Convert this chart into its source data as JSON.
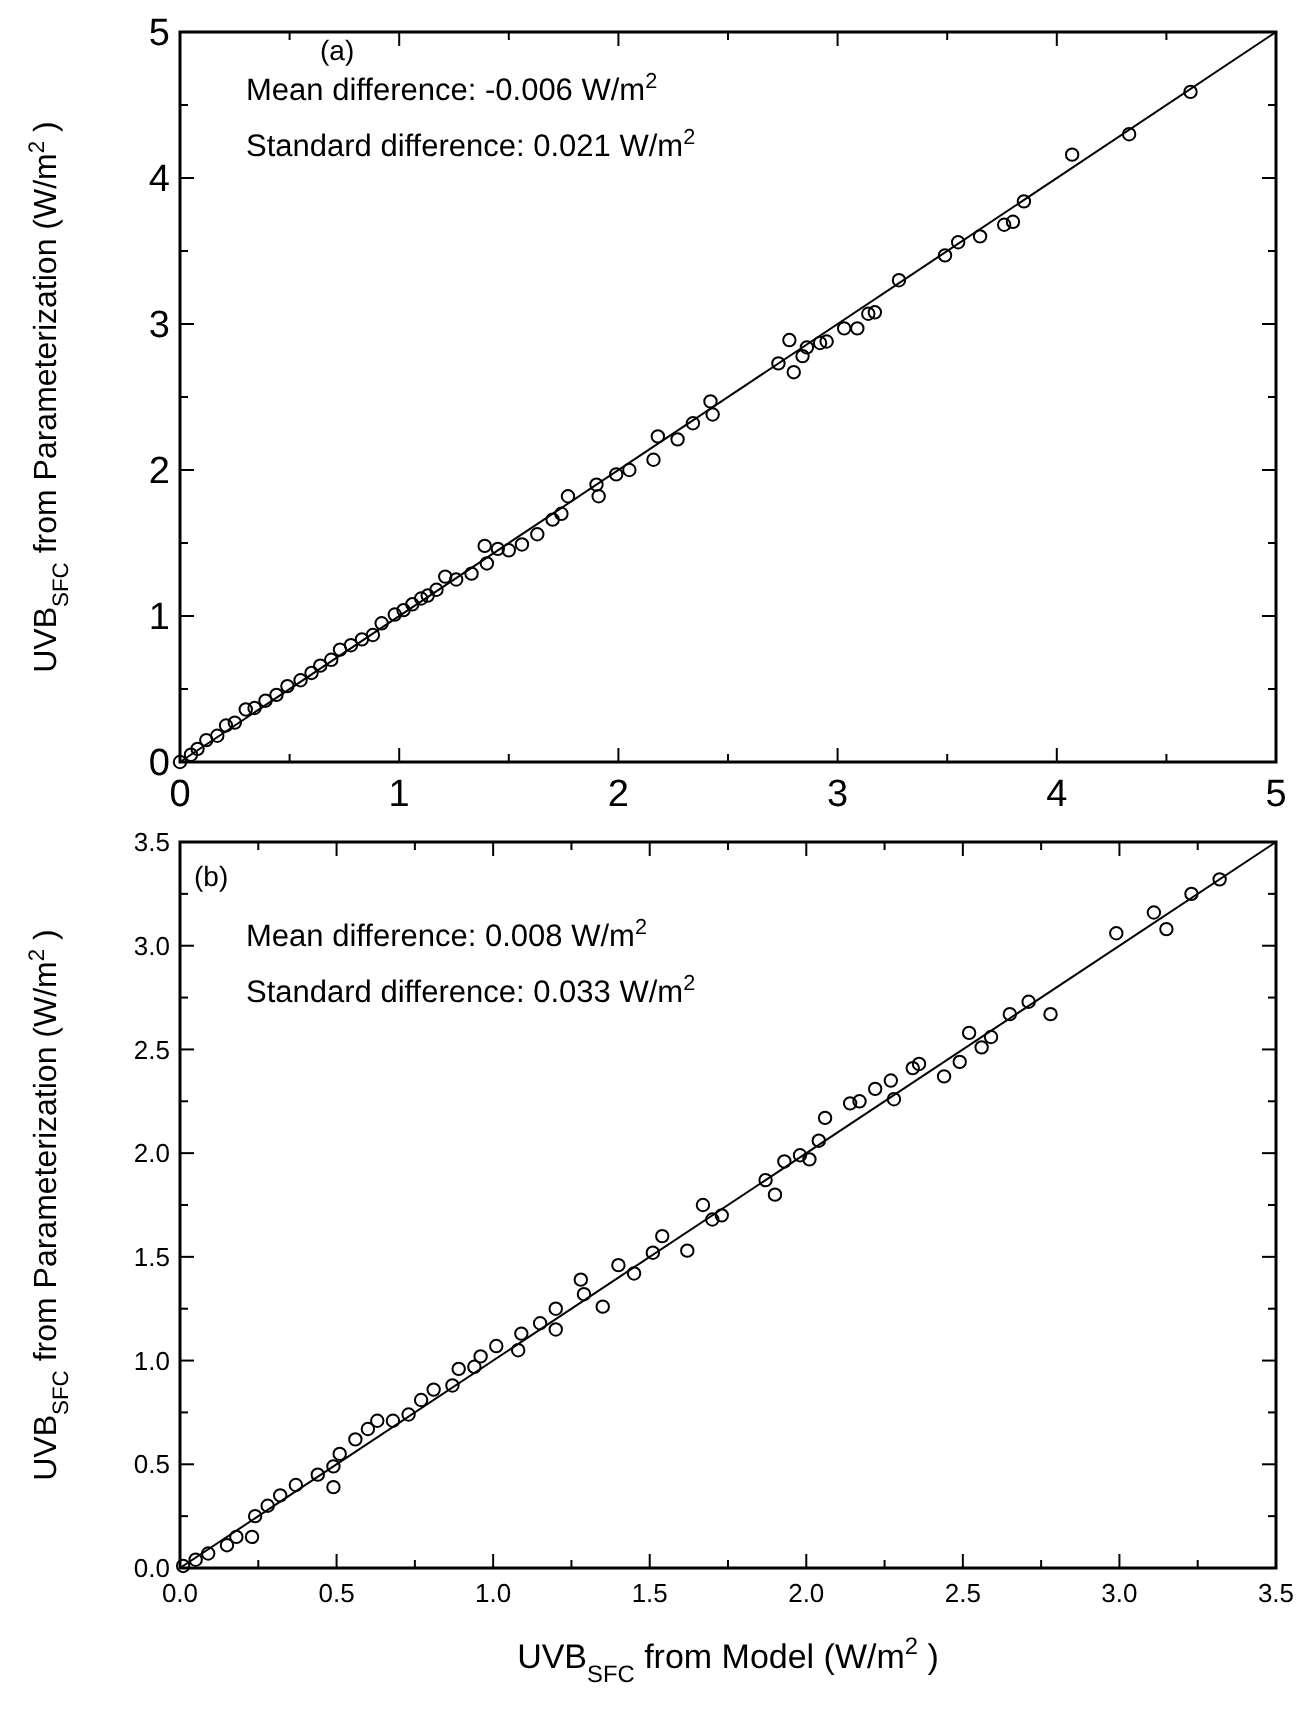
{
  "chart_data": [
    {
      "type": "scatter",
      "ylabel": "UVB$_{SFC}$ from Parameterization (W/m$^{2}$)",
      "annotations": [
        "(a)",
        "Mean difference: -0.006 W/m$^{2}$",
        "Standard difference: 0.021 W/m$^{2}$"
      ],
      "xlim": [
        0,
        5
      ],
      "ylim": [
        0,
        5
      ],
      "xticks": [
        0,
        {
          "value": 0.5,
          "label": null
        },
        1,
        {
          "value": 1.5,
          "label": null
        },
        2,
        {
          "value": 2.5,
          "label": null
        },
        3,
        {
          "value": 3.5,
          "label": null
        },
        4,
        {
          "value": 4.5,
          "label": null
        },
        5
      ],
      "yticks": [
        0,
        {
          "value": 0.5,
          "label": null
        },
        1,
        {
          "value": 1.5,
          "label": null
        },
        2,
        {
          "value": 2.5,
          "label": null
        },
        3,
        {
          "value": 3.5,
          "label": null
        },
        4,
        {
          "value": 4.5,
          "label": null
        },
        5
      ],
      "grid": false,
      "series": [
        {
          "color": "#000000",
          "marker": "circle",
          "x": [
            0,
            0.05,
            0.08,
            0.12,
            0.17,
            0.21,
            0.25,
            0.3,
            0.34,
            0.39,
            0.44,
            0.49,
            0.55,
            0.6,
            0.64,
            0.69,
            0.73,
            0.78,
            0.83,
            0.88,
            0.92,
            0.98,
            1.02,
            1.06,
            1.1,
            1.13,
            1.17,
            1.21,
            1.26,
            1.33,
            1.39,
            1.4,
            1.45,
            1.5,
            1.56,
            1.63,
            1.7,
            1.74,
            1.77,
            1.9,
            1.91,
            1.99,
            2.05,
            2.16,
            2.18,
            2.27,
            2.34,
            2.42,
            2.43,
            2.73,
            2.78,
            2.8,
            2.84,
            2.86,
            2.92,
            2.95,
            3.03,
            3.09,
            3.14,
            3.17,
            3.28,
            3.49,
            3.55,
            3.65,
            3.76,
            3.8,
            3.85,
            4.07,
            4.33,
            4.61
          ],
          "values": [
            0,
            0.05,
            0.09,
            0.15,
            0.18,
            0.25,
            0.27,
            0.36,
            0.37,
            0.42,
            0.46,
            0.52,
            0.56,
            0.61,
            0.66,
            0.7,
            0.77,
            0.8,
            0.84,
            0.87,
            0.95,
            1.01,
            1.04,
            1.08,
            1.12,
            1.14,
            1.18,
            1.27,
            1.25,
            1.29,
            1.48,
            1.36,
            1.46,
            1.45,
            1.49,
            1.56,
            1.66,
            1.7,
            1.82,
            1.9,
            1.82,
            1.97,
            2,
            2.07,
            2.23,
            2.21,
            2.32,
            2.47,
            2.38,
            2.73,
            2.89,
            2.67,
            2.78,
            2.84,
            2.87,
            2.88,
            2.97,
            2.97,
            3.07,
            3.08,
            3.3,
            3.47,
            3.56,
            3.6,
            3.68,
            3.7,
            3.84,
            4.16,
            4.3,
            4.59
          ]
        },
        {
          "type": "line",
          "color": "#000000",
          "marker": "none",
          "x": [
            0,
            5
          ],
          "values": [
            0,
            5
          ]
        }
      ]
    },
    {
      "type": "scatter",
      "xlabel": "UVB$_{SFC}$ from Model (W/m$^{2}$)",
      "ylabel": "UVB$_{SFC}$ from Parameterization (W/m$^{2}$)",
      "annotations": [
        "(b)",
        "Mean difference: 0.008 W/m$^{2}$",
        "Standard difference: 0.033 W/m$^{2}$"
      ],
      "xlim": [
        0,
        3.5
      ],
      "ylim": [
        0,
        3.5
      ],
      "xticks": [
        {
          "value": 0,
          "label": "0.0"
        },
        {
          "value": 0.25,
          "label": null
        },
        {
          "value": 0.5,
          "label": "0.5"
        },
        {
          "value": 0.75,
          "label": null
        },
        {
          "value": 1,
          "label": "1.0"
        },
        {
          "value": 1.25,
          "label": null
        },
        {
          "value": 1.5,
          "label": "1.5"
        },
        {
          "value": 1.75,
          "label": null
        },
        {
          "value": 2,
          "label": "2.0"
        },
        {
          "value": 2.25,
          "label": null
        },
        {
          "value": 2.5,
          "label": "2.5"
        },
        {
          "value": 2.75,
          "label": null
        },
        {
          "value": 3,
          "label": "3.0"
        },
        {
          "value": 3.25,
          "label": null
        },
        {
          "value": 3.5,
          "label": "3.5"
        }
      ],
      "yticks": [
        {
          "value": 0,
          "label": "0.0"
        },
        {
          "value": 0.25,
          "label": null
        },
        {
          "value": 0.5,
          "label": "0.5"
        },
        {
          "value": 0.75,
          "label": null
        },
        {
          "value": 1,
          "label": "1.0"
        },
        {
          "value": 1.25,
          "label": null
        },
        {
          "value": 1.5,
          "label": "1.5"
        },
        {
          "value": 1.75,
          "label": null
        },
        {
          "value": 2,
          "label": "2.0"
        },
        {
          "value": 2.25,
          "label": null
        },
        {
          "value": 2.5,
          "label": "2.5"
        },
        {
          "value": 2.75,
          "label": null
        },
        {
          "value": 3,
          "label": "3.0"
        },
        {
          "value": 3.25,
          "label": null
        },
        {
          "value": 3.5,
          "label": "3.5"
        }
      ],
      "grid": false,
      "series": [
        {
          "color": "#000000",
          "marker": "circle",
          "x": [
            0.01,
            0.05,
            0.09,
            0.15,
            0.18,
            0.23,
            0.24,
            0.28,
            0.32,
            0.37,
            0.44,
            0.49,
            0.49,
            0.51,
            0.56,
            0.6,
            0.63,
            0.68,
            0.73,
            0.77,
            0.81,
            0.87,
            0.89,
            0.94,
            0.96,
            1.01,
            1.08,
            1.09,
            1.15,
            1.2,
            1.2,
            1.28,
            1.29,
            1.35,
            1.4,
            1.45,
            1.51,
            1.54,
            1.62,
            1.67,
            1.7,
            1.73,
            1.87,
            1.9,
            1.93,
            1.98,
            2.01,
            2.04,
            2.06,
            2.14,
            2.17,
            2.22,
            2.27,
            2.28,
            2.34,
            2.36,
            2.44,
            2.49,
            2.52,
            2.56,
            2.59,
            2.65,
            2.71,
            2.78,
            2.99,
            3.11,
            3.15,
            3.23,
            3.32
          ],
          "values": [
            0.01,
            0.04,
            0.07,
            0.11,
            0.15,
            0.15,
            0.25,
            0.3,
            0.35,
            0.4,
            0.45,
            0.49,
            0.39,
            0.55,
            0.62,
            0.67,
            0.71,
            0.71,
            0.74,
            0.81,
            0.86,
            0.88,
            0.96,
            0.97,
            1.02,
            1.07,
            1.05,
            1.13,
            1.18,
            1.25,
            1.15,
            1.39,
            1.32,
            1.26,
            1.46,
            1.42,
            1.52,
            1.6,
            1.53,
            1.75,
            1.68,
            1.7,
            1.87,
            1.8,
            1.96,
            1.99,
            1.97,
            2.06,
            2.17,
            2.24,
            2.25,
            2.31,
            2.35,
            2.26,
            2.41,
            2.43,
            2.37,
            2.44,
            2.58,
            2.51,
            2.56,
            2.67,
            2.73,
            2.67,
            3.06,
            3.16,
            3.08,
            3.25,
            3.32
          ]
        },
        {
          "type": "line",
          "color": "#000000",
          "marker": "none",
          "x": [
            0,
            3.5
          ],
          "values": [
            0,
            3.5
          ]
        }
      ]
    }
  ]
}
